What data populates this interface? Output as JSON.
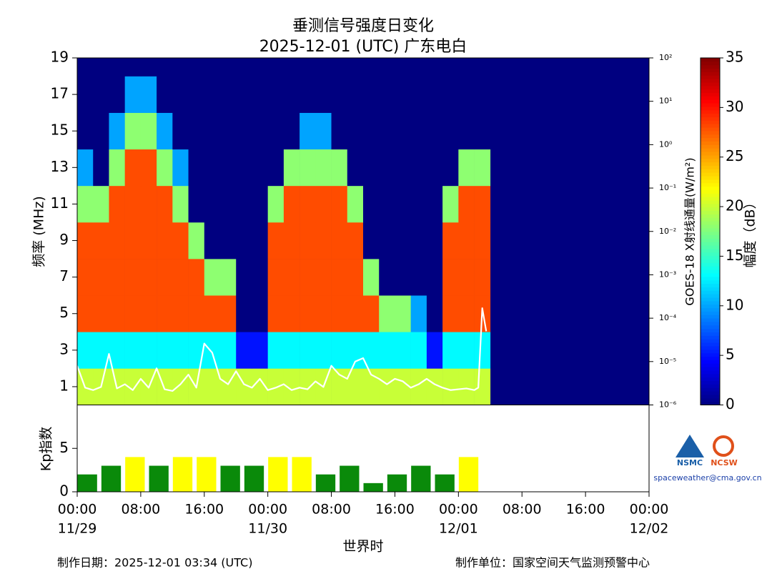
{
  "chart_data": [
    {
      "type": "heatmap",
      "title": "垂测信号强度日变化",
      "subtitle": "2025-12-01 (UTC)  广东电白",
      "y_label": "频率 (MHz)",
      "y2_label": "GOES-18 X射线通量(W/m²)",
      "colorbar_label": "幅度（dB）",
      "xlim": [
        0,
        72
      ],
      "ylim": [
        0,
        19
      ],
      "yticks": [
        1,
        3,
        5,
        7,
        9,
        11,
        13,
        15,
        17,
        19
      ],
      "y2lim": [
        1e-06,
        100
      ],
      "y2_log": true,
      "y2ticks": [
        {
          "value": 100,
          "label": "10²"
        },
        {
          "value": 10,
          "label": "10¹"
        },
        {
          "value": 1,
          "label": "10⁰"
        },
        {
          "value": 0.1,
          "label": "10⁻¹"
        },
        {
          "value": 0.01,
          "label": "10⁻²"
        },
        {
          "value": 0.001,
          "label": "10⁻³"
        },
        {
          "value": 0.0001,
          "label": "10⁻⁴"
        },
        {
          "value": 1e-05,
          "label": "10⁻⁵"
        },
        {
          "value": 1e-06,
          "label": "10⁻⁶"
        }
      ],
      "clim": [
        0,
        35
      ],
      "cticks": [
        0,
        5,
        10,
        15,
        20,
        25,
        30,
        35
      ],
      "x_bins": [
        0,
        2,
        4,
        6,
        8,
        10,
        12,
        14,
        16,
        18,
        20,
        22,
        24,
        26,
        28,
        30,
        32,
        34,
        36,
        38,
        40,
        42,
        44,
        46,
        48,
        50,
        52
      ],
      "y_bins": [
        0,
        2,
        4,
        6,
        8,
        10,
        12,
        14,
        16,
        18,
        19
      ],
      "z": [
        [
          20,
          20,
          20,
          20,
          20,
          20,
          20,
          20,
          20,
          20,
          20,
          20,
          20,
          20,
          20,
          20,
          20,
          20,
          20,
          20,
          20,
          20,
          20,
          20,
          20,
          20
        ],
        [
          13,
          13,
          13,
          13,
          13,
          13,
          13,
          13,
          13,
          13,
          5,
          5,
          13,
          13,
          13,
          13,
          13,
          13,
          13,
          13,
          13,
          13,
          5,
          13,
          13,
          13
        ],
        [
          28,
          28,
          28,
          28,
          28,
          28,
          28,
          28,
          28,
          28,
          0,
          0,
          28,
          28,
          28,
          28,
          28,
          28,
          28,
          18,
          18,
          10,
          0,
          28,
          28,
          28
        ],
        [
          28,
          28,
          28,
          28,
          28,
          28,
          28,
          28,
          18,
          18,
          0,
          0,
          28,
          28,
          28,
          28,
          28,
          28,
          18,
          0,
          0,
          0,
          0,
          28,
          28,
          28
        ],
        [
          28,
          28,
          28,
          28,
          28,
          28,
          28,
          18,
          0,
          0,
          0,
          0,
          28,
          28,
          28,
          28,
          28,
          28,
          0,
          0,
          0,
          0,
          0,
          28,
          28,
          28
        ],
        [
          18,
          18,
          28,
          28,
          28,
          28,
          18,
          0,
          0,
          0,
          0,
          0,
          18,
          28,
          28,
          28,
          28,
          18,
          0,
          0,
          0,
          0,
          0,
          18,
          28,
          28
        ],
        [
          10,
          0,
          18,
          28,
          28,
          18,
          10,
          0,
          0,
          0,
          0,
          0,
          0,
          18,
          18,
          18,
          18,
          0,
          0,
          0,
          0,
          0,
          0,
          0,
          18,
          18
        ],
        [
          0,
          0,
          10,
          18,
          18,
          10,
          0,
          0,
          0,
          0,
          0,
          0,
          0,
          0,
          10,
          10,
          0,
          0,
          0,
          0,
          0,
          0,
          0,
          0,
          0,
          0
        ],
        [
          0,
          0,
          0,
          10,
          10,
          0,
          0,
          0,
          0,
          0,
          0,
          0,
          0,
          0,
          0,
          0,
          0,
          0,
          0,
          0,
          0,
          0,
          0,
          0,
          0,
          0
        ],
        [
          0,
          0,
          0,
          0,
          0,
          0,
          0,
          0,
          0,
          0,
          0,
          0,
          0,
          0,
          0,
          0,
          0,
          0,
          0,
          0,
          0,
          0,
          0,
          0,
          0,
          0
        ]
      ],
      "series": [
        {
          "color": "#ffffff",
          "axis": "y2",
          "x": [
            0,
            1,
            2,
            3,
            4,
            5,
            6,
            7,
            8,
            9,
            10,
            11,
            12,
            13,
            14,
            15,
            16,
            17,
            18,
            19,
            20,
            21,
            22,
            23,
            24,
            25,
            26,
            27,
            28,
            29,
            30,
            31,
            32,
            33,
            34,
            35,
            36,
            37,
            38,
            39,
            40,
            41,
            42,
            43,
            44,
            45,
            46,
            47,
            48,
            49,
            50,
            50.5,
            51,
            51.5
          ],
          "values": [
            8e-06,
            2.5e-06,
            2.2e-06,
            2.6e-06,
            1.5e-05,
            2.4e-06,
            3e-06,
            2.2e-06,
            4e-06,
            2.5e-06,
            7e-06,
            2.3e-06,
            2.1e-06,
            3e-06,
            5e-06,
            2.5e-06,
            2.6e-05,
            1.6e-05,
            4e-06,
            3e-06,
            6e-06,
            3e-06,
            2.5e-06,
            4e-06,
            2.2e-06,
            2.5e-06,
            3e-06,
            2.2e-06,
            2.5e-06,
            2.3e-06,
            3.5e-06,
            2.6e-06,
            8e-06,
            5e-06,
            4e-06,
            1e-05,
            1.2e-05,
            5e-06,
            4e-06,
            3e-06,
            4e-06,
            3.5e-06,
            2.5e-06,
            3e-06,
            4e-06,
            3e-06,
            2.5e-06,
            2.2e-06,
            2.3e-06,
            2.4e-06,
            2.2e-06,
            2.5e-06,
            0.00017,
            5e-05
          ]
        }
      ]
    },
    {
      "type": "bar",
      "y_label": "Kp指数",
      "x_label": "世界时",
      "xlim": [
        0,
        72
      ],
      "ylim": [
        0,
        10
      ],
      "yticks": [
        0,
        5
      ],
      "xticks": [
        {
          "value": 0,
          "label": "00:00"
        },
        {
          "value": 8,
          "label": "08:00"
        },
        {
          "value": 16,
          "label": "16:00"
        },
        {
          "value": 24,
          "label": "00:00"
        },
        {
          "value": 32,
          "label": "08:00"
        },
        {
          "value": 40,
          "label": "16:00"
        },
        {
          "value": 48,
          "label": "00:00"
        },
        {
          "value": 56,
          "label": "08:00"
        },
        {
          "value": 64,
          "label": "16:00"
        },
        {
          "value": 72,
          "label": "00:00"
        }
      ],
      "date_labels": [
        {
          "value": 0,
          "label": "11/29"
        },
        {
          "value": 24,
          "label": "11/30"
        },
        {
          "value": 48,
          "label": "12/01"
        },
        {
          "value": 72,
          "label": "12/02"
        }
      ],
      "x": [
        0,
        3,
        6,
        9,
        12,
        15,
        18,
        21,
        24,
        27,
        30,
        33,
        36,
        39,
        42,
        45,
        48
      ],
      "values": [
        2,
        3,
        4,
        3,
        4,
        4,
        3,
        3,
        4,
        4,
        2,
        3,
        1,
        2,
        3,
        2,
        4
      ],
      "colors": [
        "#0a8a0a",
        "#0a8a0a",
        "#ffff00",
        "#0a8a0a",
        "#ffff00",
        "#ffff00",
        "#0a8a0a",
        "#0a8a0a",
        "#ffff00",
        "#ffff00",
        "#0a8a0a",
        "#0a8a0a",
        "#0a8a0a",
        "#0a8a0a",
        "#0a8a0a",
        "#0a8a0a",
        "#ffff00"
      ]
    }
  ],
  "footer": {
    "date": "制作日期：2025-12-01 03:34 (UTC)",
    "org": "制作单位：国家空间天气监测预警中心"
  },
  "logos": {
    "nsmc": "NSMC",
    "ncsw": "NCSW",
    "email": "spaceweather@cma.gov.cn"
  }
}
